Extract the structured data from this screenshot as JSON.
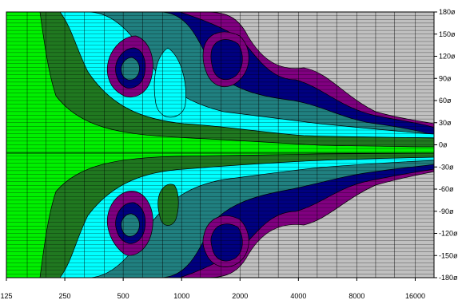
{
  "chart_data": {
    "type": "heatmap",
    "title": "",
    "xlabel": "",
    "ylabel": "",
    "x_scale": "log",
    "xlim": [
      125,
      20000
    ],
    "ylim": [
      -180,
      180
    ],
    "x_ticks": [
      {
        "value": 125,
        "label": "125"
      },
      {
        "value": 250,
        "label": "250"
      },
      {
        "value": 500,
        "label": "500"
      },
      {
        "value": 1000,
        "label": "1000"
      },
      {
        "value": 2000,
        "label": "2000"
      },
      {
        "value": 4000,
        "label": "4000"
      },
      {
        "value": 8000,
        "label": "8000"
      },
      {
        "value": 16000,
        "label": "16000"
      }
    ],
    "y_ticks": [
      {
        "value": 180,
        "label": "180ø"
      },
      {
        "value": 150,
        "label": "150ø"
      },
      {
        "value": 120,
        "label": "120ø"
      },
      {
        "value": 90,
        "label": "90ø"
      },
      {
        "value": 60,
        "label": "60ø"
      },
      {
        "value": 30,
        "label": "30ø"
      },
      {
        "value": 0,
        "label": "0ø"
      },
      {
        "value": -30,
        "label": "-30ø"
      },
      {
        "value": -60,
        "label": "-60ø"
      },
      {
        "value": -90,
        "label": "-90ø"
      },
      {
        "value": -120,
        "label": "-120ø"
      },
      {
        "value": -150,
        "label": "-150ø"
      },
      {
        "value": -180,
        "label": "-180ø"
      }
    ],
    "grid": true,
    "contour_colors": [
      "#00f000",
      "#207820",
      "#00ffff",
      "#208080",
      "#000080",
      "#800080",
      "#c0c0c0"
    ],
    "contour_points": [
      {
        "freq": 125,
        "angle": 0,
        "level": 0
      },
      {
        "freq": 250,
        "angle": 90,
        "level": 2
      },
      {
        "freq": 250,
        "angle": -90,
        "level": 2
      },
      {
        "freq": 500,
        "angle": 100,
        "level": 5
      },
      {
        "freq": 500,
        "angle": -100,
        "level": 5
      },
      {
        "freq": 700,
        "angle": 60,
        "level": 4
      },
      {
        "freq": 700,
        "angle": -60,
        "level": 4
      },
      {
        "freq": 1000,
        "angle": 0,
        "level": 0
      },
      {
        "freq": 1000,
        "angle": 60,
        "level": 2
      },
      {
        "freq": 1000,
        "angle": -60,
        "level": 2
      },
      {
        "freq": 1600,
        "angle": 110,
        "level": 4
      },
      {
        "freq": 1600,
        "angle": -110,
        "level": 4
      },
      {
        "freq": 2000,
        "angle": 0,
        "level": 0
      },
      {
        "freq": 2000,
        "angle": 40,
        "level": 1
      },
      {
        "freq": 2000,
        "angle": -40,
        "level": 1
      },
      {
        "freq": 4000,
        "angle": 40,
        "level": 2
      },
      {
        "freq": 4000,
        "angle": -40,
        "level": 3
      },
      {
        "freq": 4000,
        "angle": 120,
        "level": 6
      },
      {
        "freq": 4000,
        "angle": -120,
        "level": 6
      },
      {
        "freq": 8000,
        "angle": 20,
        "level": 1
      },
      {
        "freq": 8000,
        "angle": 60,
        "level": 6
      },
      {
        "freq": 16000,
        "angle": 0,
        "level": 1
      },
      {
        "freq": 16000,
        "angle": 30,
        "level": 5
      },
      {
        "freq": 16000,
        "angle": -30,
        "level": 5
      }
    ]
  }
}
